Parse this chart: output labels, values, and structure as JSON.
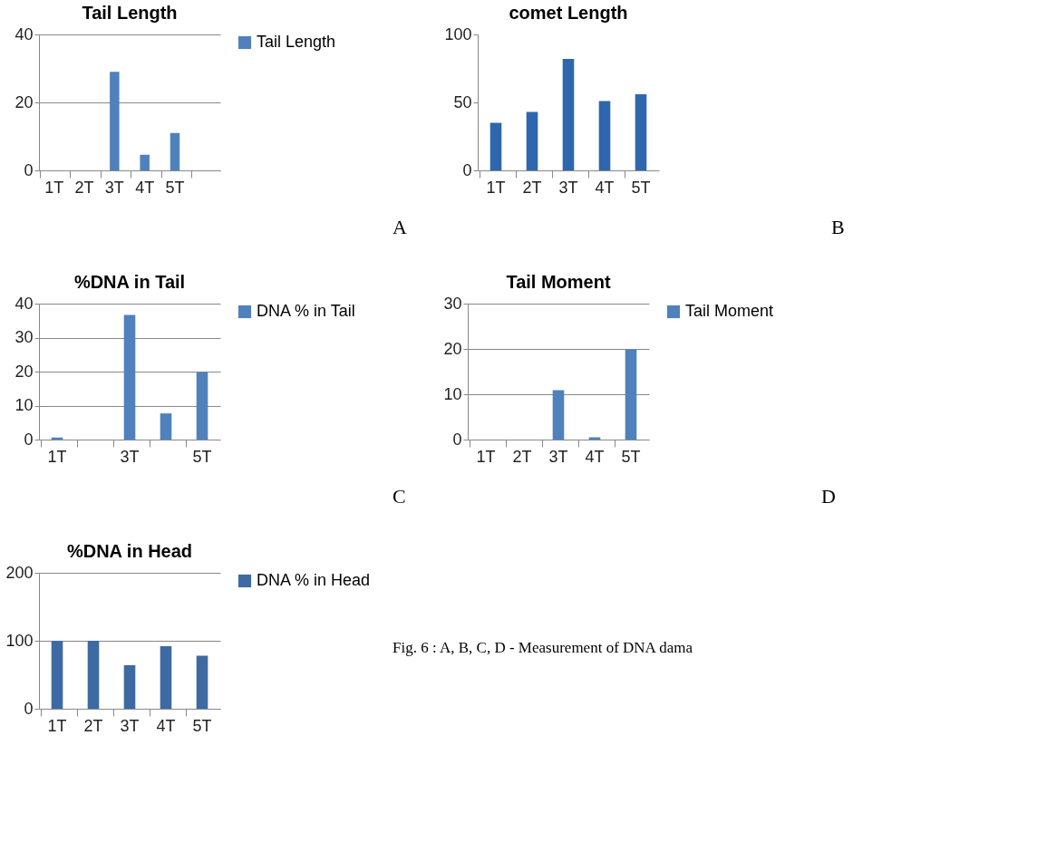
{
  "chart_data": [
    {
      "type": "bar",
      "title": "Tail Length",
      "categories": [
        "1T",
        "2T",
        "3T",
        "4T",
        "5T",
        null
      ],
      "series": [
        {
          "name": "Tail Length",
          "color": "#4f81bd",
          "values": [
            0,
            0,
            29,
            4.6,
            11,
            null
          ]
        }
      ],
      "ylim": [
        0,
        40
      ],
      "yticks": [
        0,
        20,
        40
      ],
      "grid": "y",
      "legend": "right",
      "annotations": [
        "A"
      ]
    },
    {
      "type": "bar",
      "title": "comet Length",
      "categories": [
        "1T",
        "2T",
        "3T",
        "4T",
        "5T"
      ],
      "series": [
        {
          "color": "#2e67ad",
          "values": [
            35,
            43,
            82,
            51,
            56
          ]
        }
      ],
      "ylim": [
        0,
        100
      ],
      "yticks": [
        0,
        50,
        100
      ],
      "grid": false,
      "legend": false,
      "annotations": [
        "B"
      ]
    },
    {
      "type": "bar",
      "title": "%DNA in Tail",
      "categories": [
        "1T",
        null,
        "3T",
        null,
        "5T"
      ],
      "series": [
        {
          "name": "DNA % in Tail",
          "color": "#4f81bd",
          "values": [
            0.6,
            0,
            36.7,
            7.7,
            19.8
          ]
        }
      ],
      "ylim": [
        0,
        40
      ],
      "yticks": [
        0,
        10,
        20,
        30,
        40
      ],
      "grid": "y",
      "legend": "right",
      "annotations": [
        "C"
      ]
    },
    {
      "type": "bar",
      "title": "Tail Moment",
      "categories": [
        "1T",
        "2T",
        "3T",
        "4T",
        "5T"
      ],
      "series": [
        {
          "name": "Tail Moment",
          "color": "#4f81bd",
          "values": [
            0,
            0,
            10.9,
            0.5,
            19.9
          ]
        }
      ],
      "ylim": [
        0,
        30
      ],
      "yticks": [
        0,
        10,
        20,
        30
      ],
      "grid": "y",
      "legend": "right",
      "annotations": [
        "D"
      ]
    },
    {
      "type": "bar",
      "title": "%DNA in Head",
      "categories": [
        "1T",
        "2T",
        "3T",
        "4T",
        "5T"
      ],
      "series": [
        {
          "name": "DNA % in Head",
          "color": "#3d6aa3",
          "values": [
            100,
            100,
            64,
            92,
            78
          ]
        }
      ],
      "ylim": [
        0,
        200
      ],
      "yticks": [
        0,
        100,
        200
      ],
      "grid": "y",
      "legend": "right",
      "annotations": [
        "Fig. 6 : A, B, C, D - Measurement of  DNA dama"
      ]
    }
  ]
}
